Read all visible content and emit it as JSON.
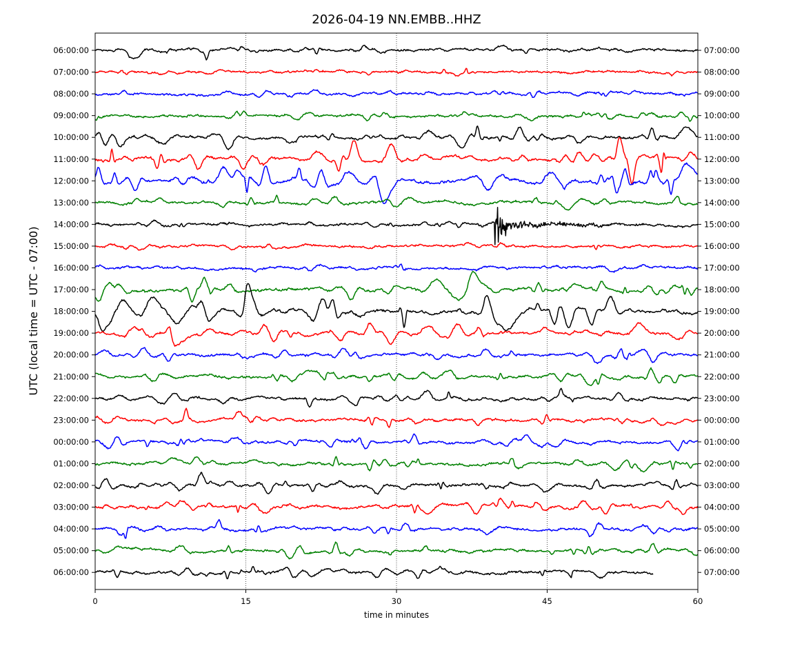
{
  "chart_data": {
    "type": "line",
    "title": "2026-04-19 NN.EMBB..HHZ",
    "xlabel": "time in minutes",
    "ylabel": "UTC (local time = UTC - 07:00)",
    "x_ticks": [
      0,
      15,
      30,
      45,
      60
    ],
    "xlim": [
      0,
      60
    ],
    "grid": "vertical dotted lines at 15, 30, 45",
    "colors": [
      "#000000",
      "#ff0000",
      "#0000ff",
      "#008000"
    ],
    "left_labels": [
      "06:00:00",
      "07:00:00",
      "08:00:00",
      "09:00:00",
      "10:00:00",
      "11:00:00",
      "12:00:00",
      "13:00:00",
      "14:00:00",
      "15:00:00",
      "16:00:00",
      "17:00:00",
      "18:00:00",
      "19:00:00",
      "20:00:00",
      "21:00:00",
      "22:00:00",
      "23:00:00",
      "00:00:00",
      "01:00:00",
      "02:00:00",
      "03:00:00",
      "04:00:00",
      "05:00:00",
      "06:00:00"
    ],
    "right_labels": [
      "07:00:00",
      "08:00:00",
      "09:00:00",
      "10:00:00",
      "11:00:00",
      "12:00:00",
      "13:00:00",
      "14:00:00",
      "15:00:00",
      "16:00:00",
      "17:00:00",
      "18:00:00",
      "19:00:00",
      "20:00:00",
      "21:00:00",
      "22:00:00",
      "23:00:00",
      "00:00:00",
      "01:00:00",
      "02:00:00",
      "03:00:00",
      "04:00:00",
      "05:00:00",
      "06:00:00",
      "07:00:00"
    ],
    "activity": [
      0.5,
      0.35,
      0.45,
      0.5,
      0.8,
      0.95,
      1.0,
      0.55,
      0.4,
      0.35,
      0.45,
      0.9,
      1.0,
      0.8,
      0.6,
      0.65,
      0.6,
      0.6,
      0.6,
      0.6,
      0.65,
      0.65,
      0.65,
      0.6,
      0.6
    ],
    "last_trace_end_minutes": 55.5,
    "event": {
      "trace_index": 8,
      "minute": 39.8,
      "label_start": "14:00:00"
    }
  }
}
